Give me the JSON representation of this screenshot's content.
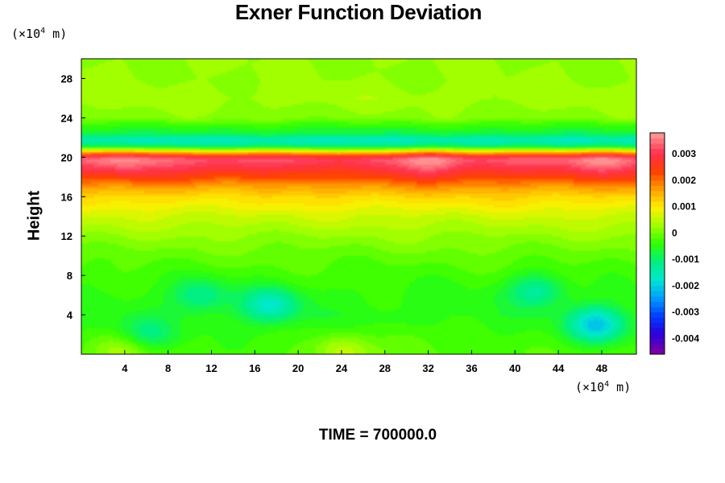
{
  "chart_data": {
    "type": "heatmap",
    "title": "Exner Function Deviation",
    "ylabel": "Height",
    "x_unit": {
      "prefix": "(×10",
      "exp": "4",
      "suffix": " m)"
    },
    "y_unit": {
      "prefix": "(×10",
      "exp": "4",
      "suffix": " m)"
    },
    "xlim": [
      0,
      51.2
    ],
    "ylim": [
      0,
      30
    ],
    "x_ticks": [
      4,
      8,
      12,
      16,
      20,
      24,
      28,
      32,
      36,
      40,
      44,
      48
    ],
    "y_ticks": [
      4,
      8,
      12,
      16,
      20,
      24,
      28
    ],
    "x_tick_labels": [
      "4",
      "8",
      "12",
      "16",
      "20",
      "24",
      "28",
      "32",
      "36",
      "40",
      "44",
      "48"
    ],
    "y_tick_labels": [
      "4",
      "8",
      "12",
      "16",
      "20",
      "24",
      "28"
    ],
    "colorbar": {
      "range": [
        -0.0046,
        0.0038
      ],
      "ticks": [
        0.003,
        0.002,
        0.001,
        0,
        -0.001,
        -0.002,
        -0.003,
        -0.004
      ],
      "tick_labels": [
        "0.003",
        "0.002",
        "0.001",
        "0",
        "-0.001",
        "-0.002",
        "-0.003",
        "-0.004"
      ],
      "colormap": [
        "#7a00a8",
        "#2a00e0",
        "#0040ff",
        "#00a0ff",
        "#00e8d0",
        "#00f080",
        "#30ff00",
        "#a0ff00",
        "#fff000",
        "#ffa000",
        "#ff4000",
        "#ff3050",
        "#ff9090"
      ]
    },
    "vertical_profile": {
      "heights": [
        0,
        2,
        4,
        6,
        8,
        10,
        12,
        14,
        16,
        17,
        18,
        19,
        19.6,
        20,
        20.6,
        21.2,
        21.8,
        22.4,
        23.2,
        24,
        26,
        28,
        30
      ],
      "values": [
        -0.00025,
        -0.0004,
        -0.0005,
        -0.00045,
        -0.0003,
        -0.0001,
        0.0002,
        0.0006,
        0.0012,
        0.0017,
        0.0024,
        0.003,
        0.0033,
        0.0031,
        0.001,
        -0.0012,
        -0.0016,
        -0.0008,
        -0.0004,
        0.0001,
        0.0003,
        0.0002,
        0.0002
      ]
    },
    "anomalies": [
      {
        "x": 17.5,
        "y": 5,
        "value": -0.0012
      },
      {
        "x": 47.5,
        "y": 3,
        "value": -0.0016
      },
      {
        "x": 11,
        "y": 6,
        "value": -0.0008
      },
      {
        "x": 42,
        "y": 6.5,
        "value": -0.0009
      },
      {
        "x": 6,
        "y": 2,
        "value": -0.0007
      },
      {
        "x": 24,
        "y": 0.5,
        "value": 0.0007
      },
      {
        "x": 4,
        "y": 0.5,
        "value": 0.0006
      },
      {
        "x": 30,
        "y": 1,
        "value": 0.0004
      },
      {
        "x": 32,
        "y": 19.6,
        "value": 0.0005
      },
      {
        "x": 48,
        "y": 19.6,
        "value": 0.0004
      },
      {
        "x": 4,
        "y": 19.6,
        "value": 0.0004
      },
      {
        "x": 24,
        "y": 19.6,
        "value": -0.0004
      },
      {
        "x": 14,
        "y": 17,
        "value": -0.0003
      }
    ]
  },
  "footer": {
    "time_label": "TIME = 700000.0"
  }
}
